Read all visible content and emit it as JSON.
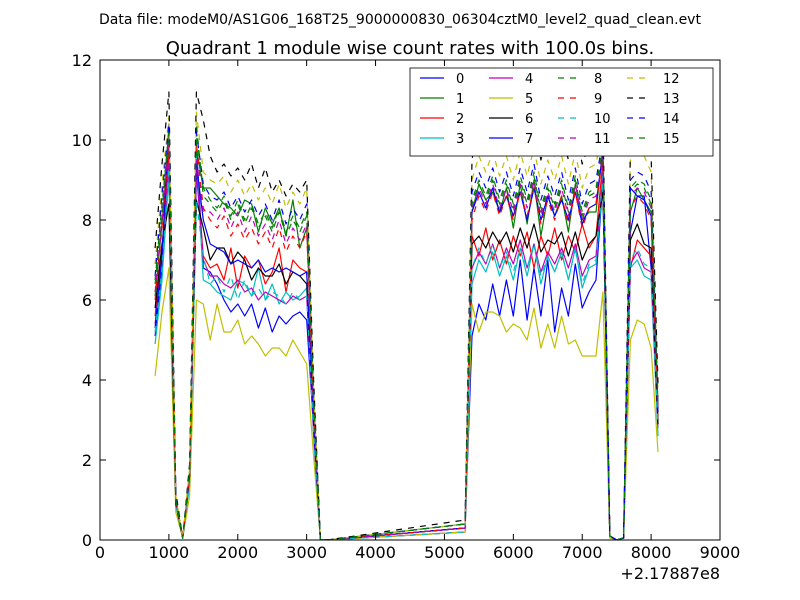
{
  "chart_data": {
    "type": "line",
    "suptitle": "Data file: modeM0/AS1G06_168T25_9000000830_06304cztM0_level2_quad_clean.evt",
    "title": "Quadrant 1 module wise count rates with 100.0s bins.",
    "xlabel": "",
    "ylabel": "",
    "x_offset_label": "+2.17887e8",
    "xlim": [
      0,
      9000
    ],
    "ylim": [
      0,
      12
    ],
    "x_ticks": [
      0,
      1000,
      2000,
      3000,
      4000,
      5000,
      6000,
      7000,
      8000,
      9000
    ],
    "y_ticks": [
      0,
      2,
      4,
      6,
      8,
      10,
      12
    ],
    "legend_position": "upper-right",
    "legend_columns": 4,
    "x": [
      800,
      900,
      1000,
      1100,
      1200,
      1300,
      1400,
      1500,
      1600,
      1700,
      1800,
      1900,
      2000,
      2100,
      2200,
      2300,
      2400,
      2500,
      2600,
      2700,
      2800,
      2900,
      3000,
      3100,
      3200,
      3300,
      5300,
      5400,
      5500,
      5600,
      5700,
      5800,
      5900,
      6000,
      6100,
      6200,
      6300,
      6400,
      6500,
      6600,
      6700,
      6800,
      6900,
      7000,
      7100,
      7200,
      7300,
      7400,
      7500,
      7600,
      7700,
      7800,
      7900,
      8000,
      8100
    ],
    "series": [
      {
        "name": "0",
        "color": "#0000ff",
        "dash": "solid",
        "values": [
          5.1,
          6.8,
          9.9,
          1.0,
          0.05,
          1.5,
          9.9,
          6.8,
          6.7,
          6.4,
          6.0,
          5.7,
          5.9,
          5.6,
          5.9,
          5.3,
          5.8,
          5.2,
          5.6,
          5.4,
          5.6,
          5.7,
          5.5,
          2.8,
          0,
          0,
          0.3,
          5.1,
          5.9,
          5.5,
          6.4,
          5.6,
          6.5,
          5.6,
          7.0,
          5.5,
          6.8,
          5.6,
          7.0,
          5.2,
          6.3,
          5.6,
          6.9,
          5.8,
          6.2,
          6.5,
          9.0,
          0.1,
          0,
          0.05,
          7.7,
          8.6,
          8.6,
          6.8,
          3.3
        ]
      },
      {
        "name": "1",
        "color": "#008000",
        "dash": "solid",
        "values": [
          6.1,
          7.9,
          10.0,
          1.0,
          0.05,
          1.7,
          9.8,
          8.8,
          8.8,
          8.6,
          8.4,
          8.3,
          8.1,
          8.5,
          8.4,
          7.7,
          8.3,
          7.9,
          8.3,
          7.6,
          8.5,
          7.3,
          7.8,
          3.6,
          0,
          0,
          0.4,
          8.2,
          8.9,
          8.5,
          8.7,
          8.2,
          8.8,
          7.8,
          8.9,
          7.9,
          9.0,
          7.6,
          8.6,
          8.1,
          8.6,
          7.7,
          8.9,
          8.0,
          8.2,
          8.2,
          9.8,
          0.1,
          0,
          0.05,
          8.2,
          8.8,
          8.5,
          8.2,
          3.0
        ]
      },
      {
        "name": "2",
        "color": "#ff0000",
        "dash": "solid",
        "values": [
          5.6,
          7.3,
          9.6,
          1.0,
          0.05,
          1.6,
          9.3,
          7.1,
          6.8,
          6.9,
          6.5,
          7.3,
          6.3,
          7.1,
          6.8,
          7.0,
          6.4,
          6.7,
          7.3,
          6.2,
          7.0,
          6.8,
          6.7,
          3.0,
          0,
          0,
          0.3,
          7.6,
          7.1,
          7.8,
          7.0,
          7.5,
          6.9,
          7.6,
          7.1,
          7.7,
          6.8,
          7.6,
          7.1,
          7.8,
          7.0,
          7.6,
          7.2,
          7.9,
          7.3,
          7.6,
          9.5,
          0.1,
          0,
          0.05,
          6.8,
          7.5,
          7.3,
          7.1,
          3.0
        ]
      },
      {
        "name": "3",
        "color": "#00bfbf",
        "dash": "solid",
        "values": [
          4.9,
          6.5,
          9.1,
          0.9,
          0.05,
          1.4,
          9.6,
          6.5,
          6.4,
          6.2,
          6.1,
          6.0,
          6.5,
          6.4,
          6.1,
          6.8,
          6.0,
          6.4,
          5.9,
          6.2,
          6.0,
          6.1,
          6.3,
          2.6,
          0,
          0,
          0.2,
          6.4,
          7.0,
          6.7,
          7.2,
          6.6,
          7.1,
          6.5,
          7.3,
          6.6,
          7.4,
          6.4,
          7.1,
          6.7,
          7.2,
          6.5,
          7.3,
          6.3,
          6.8,
          6.9,
          9.0,
          0.1,
          0,
          0.05,
          6.8,
          7.0,
          6.6,
          6.5,
          2.6
        ]
      },
      {
        "name": "4",
        "color": "#bf00bf",
        "dash": "solid",
        "values": [
          5.4,
          7.0,
          9.4,
          1.0,
          0.05,
          1.5,
          9.2,
          7.0,
          6.6,
          6.6,
          6.4,
          6.3,
          6.5,
          6.2,
          6.3,
          6.0,
          6.2,
          6.1,
          6.0,
          5.9,
          6.1,
          6.0,
          6.1,
          2.7,
          0,
          0,
          0.2,
          6.8,
          7.2,
          6.9,
          7.4,
          6.8,
          7.3,
          6.9,
          7.5,
          6.8,
          7.4,
          6.7,
          7.2,
          6.9,
          7.3,
          6.8,
          7.4,
          6.6,
          7.0,
          7.1,
          9.2,
          0.1,
          0,
          0.05,
          6.9,
          7.2,
          6.8,
          6.7,
          2.8
        ]
      },
      {
        "name": "5",
        "color": "#bfbf00",
        "dash": "solid",
        "values": [
          4.1,
          5.7,
          6.8,
          0.7,
          0.05,
          1.1,
          6.0,
          5.9,
          5.0,
          5.9,
          5.2,
          5.2,
          5.5,
          4.9,
          5.1,
          4.9,
          4.6,
          4.8,
          4.8,
          4.6,
          5.0,
          4.7,
          4.4,
          2.1,
          0,
          0,
          0.2,
          5.9,
          5.2,
          5.7,
          5.7,
          5.6,
          5.2,
          5.4,
          5.3,
          5.0,
          5.8,
          4.8,
          5.4,
          4.8,
          5.6,
          4.9,
          5.0,
          4.6,
          4.6,
          4.6,
          6.2,
          0.05,
          0,
          0.05,
          5.0,
          5.5,
          5.4,
          4.8,
          2.2
        ]
      },
      {
        "name": "6",
        "color": "#000000",
        "dash": "solid",
        "values": [
          5.8,
          7.4,
          8.4,
          0.9,
          0.05,
          1.6,
          8.5,
          7.8,
          7.0,
          7.3,
          7.3,
          6.9,
          7.2,
          7.0,
          6.5,
          6.8,
          6.6,
          6.6,
          6.9,
          6.4,
          6.7,
          6.6,
          6.4,
          3.0,
          0,
          0,
          0.3,
          7.4,
          7.6,
          7.3,
          7.7,
          7.4,
          7.7,
          7.2,
          7.8,
          7.3,
          7.9,
          7.2,
          7.5,
          7.4,
          7.7,
          7.1,
          7.7,
          7.0,
          7.4,
          7.6,
          8.7,
          0.1,
          0,
          0.05,
          7.5,
          7.9,
          7.4,
          7.3,
          2.9
        ]
      },
      {
        "name": "7",
        "color": "#0000ff",
        "dash": "solid",
        "values": [
          5.3,
          7.1,
          10.4,
          1.0,
          0.05,
          1.6,
          9.4,
          8.0,
          7.4,
          7.3,
          7.2,
          6.9,
          7.0,
          6.9,
          6.8,
          7.0,
          6.7,
          6.8,
          6.7,
          6.8,
          6.7,
          6.6,
          6.7,
          2.9,
          0,
          0,
          0.3,
          8.2,
          8.7,
          8.3,
          8.8,
          8.2,
          8.6,
          8.1,
          8.7,
          8.0,
          8.8,
          8.0,
          8.6,
          8.1,
          8.5,
          8.0,
          8.7,
          7.9,
          8.3,
          8.4,
          9.7,
          0.1,
          0,
          0.05,
          8.8,
          8.6,
          8.5,
          8.1,
          3.2
        ]
      },
      {
        "name": "8",
        "color": "#008000",
        "dash": "dashed",
        "values": [
          6.4,
          8.2,
          10.3,
          1.1,
          0.05,
          1.7,
          10.4,
          8.6,
          8.4,
          8.2,
          8.5,
          8.0,
          8.4,
          7.9,
          8.3,
          7.8,
          8.1,
          7.7,
          8.2,
          7.6,
          8.0,
          7.7,
          8.1,
          3.5,
          0,
          0,
          0.4,
          8.4,
          8.9,
          8.5,
          9.0,
          8.4,
          8.9,
          8.3,
          9.0,
          8.4,
          9.1,
          8.2,
          8.8,
          8.3,
          8.9,
          8.2,
          9.0,
          8.1,
          8.6,
          8.7,
          9.9,
          0.1,
          0,
          0.05,
          8.7,
          8.9,
          8.8,
          8.4,
          3.4
        ]
      },
      {
        "name": "9",
        "color": "#ff0000",
        "dash": "dashed",
        "values": [
          6.0,
          7.8,
          9.9,
          1.0,
          0.05,
          1.6,
          9.9,
          8.3,
          8.0,
          7.8,
          8.1,
          7.6,
          7.9,
          7.5,
          7.8,
          7.4,
          7.7,
          7.3,
          7.8,
          7.2,
          7.6,
          7.3,
          7.7,
          3.3,
          0,
          0,
          0.3,
          8.0,
          8.6,
          8.2,
          8.7,
          8.1,
          8.6,
          8.0,
          8.7,
          8.1,
          8.8,
          7.9,
          8.5,
          8.0,
          8.6,
          7.9,
          8.7,
          7.8,
          8.3,
          8.4,
          9.6,
          0.1,
          0,
          0.05,
          8.3,
          8.6,
          8.4,
          8.0,
          3.2
        ]
      },
      {
        "name": "10",
        "color": "#00bfbf",
        "dash": "dashed",
        "values": [
          5.2,
          6.8,
          9.3,
          0.9,
          0.05,
          1.4,
          8.5,
          7.1,
          6.4,
          6.6,
          6.2,
          6.6,
          6.0,
          6.5,
          6.1,
          6.3,
          6.0,
          6.2,
          6.1,
          5.9,
          6.2,
          6.0,
          6.1,
          2.7,
          0,
          0,
          0.2,
          6.8,
          7.3,
          6.9,
          7.4,
          6.8,
          7.2,
          6.7,
          7.3,
          6.8,
          7.4,
          6.6,
          7.1,
          6.7,
          7.2,
          6.5,
          7.3,
          6.4,
          6.9,
          7.0,
          9.1,
          0.1,
          0,
          0.05,
          7.0,
          7.3,
          6.9,
          6.8,
          2.8
        ]
      },
      {
        "name": "11",
        "color": "#bf00bf",
        "dash": "dashed",
        "values": [
          6.2,
          8.0,
          10.1,
          1.0,
          0.05,
          1.6,
          9.5,
          8.2,
          8.2,
          8.0,
          8.3,
          7.8,
          8.2,
          7.7,
          8.1,
          7.6,
          7.9,
          7.5,
          8.0,
          7.4,
          7.8,
          7.5,
          7.9,
          3.4,
          0,
          0,
          0.3,
          8.3,
          8.8,
          8.4,
          8.9,
          8.3,
          8.8,
          8.2,
          8.9,
          8.3,
          9.0,
          8.1,
          8.7,
          8.2,
          8.8,
          8.1,
          8.9,
          8.0,
          8.5,
          8.6,
          9.8,
          0.1,
          0,
          0.05,
          8.6,
          8.8,
          8.7,
          8.3,
          3.3
        ]
      },
      {
        "name": "12",
        "color": "#bfbf00",
        "dash": "dashed",
        "values": [
          6.9,
          8.9,
          10.6,
          1.1,
          0.05,
          1.8,
          10.7,
          9.2,
          9.0,
          8.9,
          9.1,
          8.7,
          9.0,
          8.6,
          8.9,
          8.5,
          8.8,
          8.4,
          8.9,
          8.3,
          8.7,
          8.4,
          8.8,
          3.8,
          0,
          0,
          0.4,
          9.0,
          9.6,
          9.2,
          9.7,
          9.1,
          9.6,
          9.0,
          9.7,
          9.1,
          9.8,
          8.9,
          9.5,
          9.0,
          9.6,
          8.9,
          9.7,
          8.8,
          9.3,
          9.4,
          10.3,
          0.1,
          0,
          0.05,
          9.5,
          9.9,
          9.6,
          9.2,
          3.6
        ]
      },
      {
        "name": "13",
        "color": "#000000",
        "dash": "dashed",
        "values": [
          7.3,
          9.4,
          11.2,
          1.2,
          0.05,
          1.9,
          11.2,
          10.5,
          9.6,
          9.2,
          9.4,
          9.1,
          9.3,
          9.0,
          9.4,
          8.8,
          9.3,
          8.7,
          9.0,
          8.6,
          8.9,
          8.7,
          9.0,
          4.0,
          0,
          0,
          0.5,
          9.5,
          10.6,
          9.8,
          10.2,
          9.7,
          10.2,
          9.6,
          10.3,
          9.7,
          10.4,
          9.5,
          10.1,
          9.6,
          10.2,
          9.5,
          10.3,
          9.4,
          9.9,
          10.0,
          10.6,
          0.1,
          0,
          0.05,
          9.8,
          10.0,
          10.0,
          9.6,
          3.9
        ]
      },
      {
        "name": "14",
        "color": "#0000ff",
        "dash": "dashed",
        "values": [
          6.6,
          8.6,
          10.4,
          1.1,
          0.05,
          1.7,
          10.2,
          8.9,
          8.6,
          8.5,
          8.7,
          8.3,
          8.6,
          8.2,
          8.5,
          8.1,
          8.4,
          8.0,
          8.5,
          7.9,
          8.3,
          8.0,
          8.4,
          3.6,
          0,
          0,
          0.4,
          8.7,
          9.2,
          8.8,
          9.3,
          8.7,
          9.2,
          8.6,
          9.3,
          8.7,
          9.4,
          8.5,
          9.1,
          8.6,
          9.2,
          8.5,
          9.3,
          8.4,
          8.9,
          9.0,
          10.0,
          0.1,
          0,
          0.05,
          9.0,
          9.2,
          9.1,
          8.7,
          3.4
        ]
      },
      {
        "name": "15",
        "color": "#008000",
        "dash": "dashed",
        "values": [
          6.5,
          8.4,
          10.2,
          1.0,
          0.05,
          1.7,
          10.1,
          8.8,
          8.5,
          8.3,
          8.6,
          8.1,
          8.5,
          8.0,
          8.4,
          7.9,
          8.2,
          7.8,
          8.3,
          7.7,
          8.1,
          7.8,
          8.2,
          3.5,
          0,
          0,
          0.4,
          8.5,
          9.0,
          8.6,
          9.1,
          8.5,
          9.0,
          8.4,
          9.1,
          8.5,
          9.2,
          8.3,
          8.9,
          8.4,
          9.0,
          8.3,
          9.1,
          8.2,
          8.7,
          8.8,
          9.9,
          0.1,
          0,
          0.05,
          8.8,
          9.0,
          8.9,
          8.5,
          3.3
        ]
      }
    ]
  }
}
